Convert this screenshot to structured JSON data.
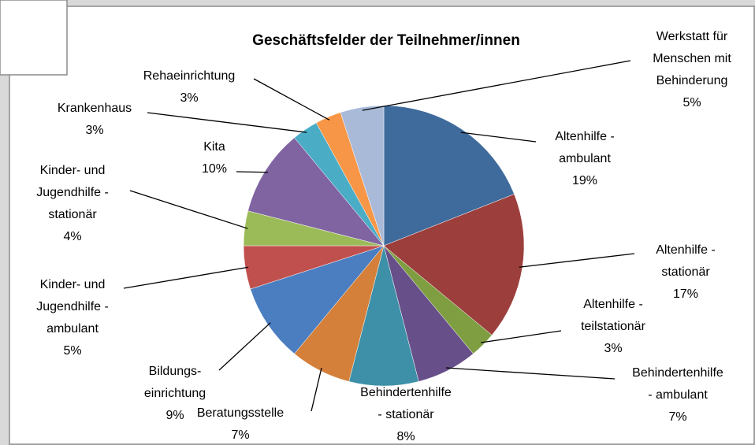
{
  "chart_data": {
    "type": "pie",
    "title": "Geschäftsfelder der Teilnehmer/innen",
    "categories": [
      "Altenhilfe -\nambulant",
      "Altenhilfe -\nstationär",
      "Altenhilfe -\nteilstationär",
      "Behindertenhilfe\n- ambulant",
      "Behindertenhilfe\n- stationär",
      "Beratungsstelle",
      "Bildungs-\neinrichtung",
      "Kinder- und\nJugendhilfe -\nambulant",
      "Kinder- und\nJugendhilfe -\nstationär",
      "Kita",
      "Krankenhaus",
      "Rehaeinrichtung",
      "Werkstatt für\nMenschen mit\nBehinderung"
    ],
    "values": [
      19,
      17,
      3,
      7,
      8,
      7,
      9,
      5,
      4,
      10,
      3,
      3,
      5
    ],
    "value_labels": [
      "19%",
      "17%",
      "3%",
      "7%",
      "8%",
      "7%",
      "9%",
      "5%",
      "4%",
      "10%",
      "3%",
      "3%",
      "5%"
    ],
    "colors": [
      "#3e6a9c",
      "#9c3f3c",
      "#7f9e42",
      "#674f89",
      "#3d90a8",
      "#d4803a",
      "#4a7ec0",
      "#c0504d",
      "#9bbb59",
      "#8064a2",
      "#4bacc6",
      "#f79646",
      "#a9bad9"
    ]
  }
}
